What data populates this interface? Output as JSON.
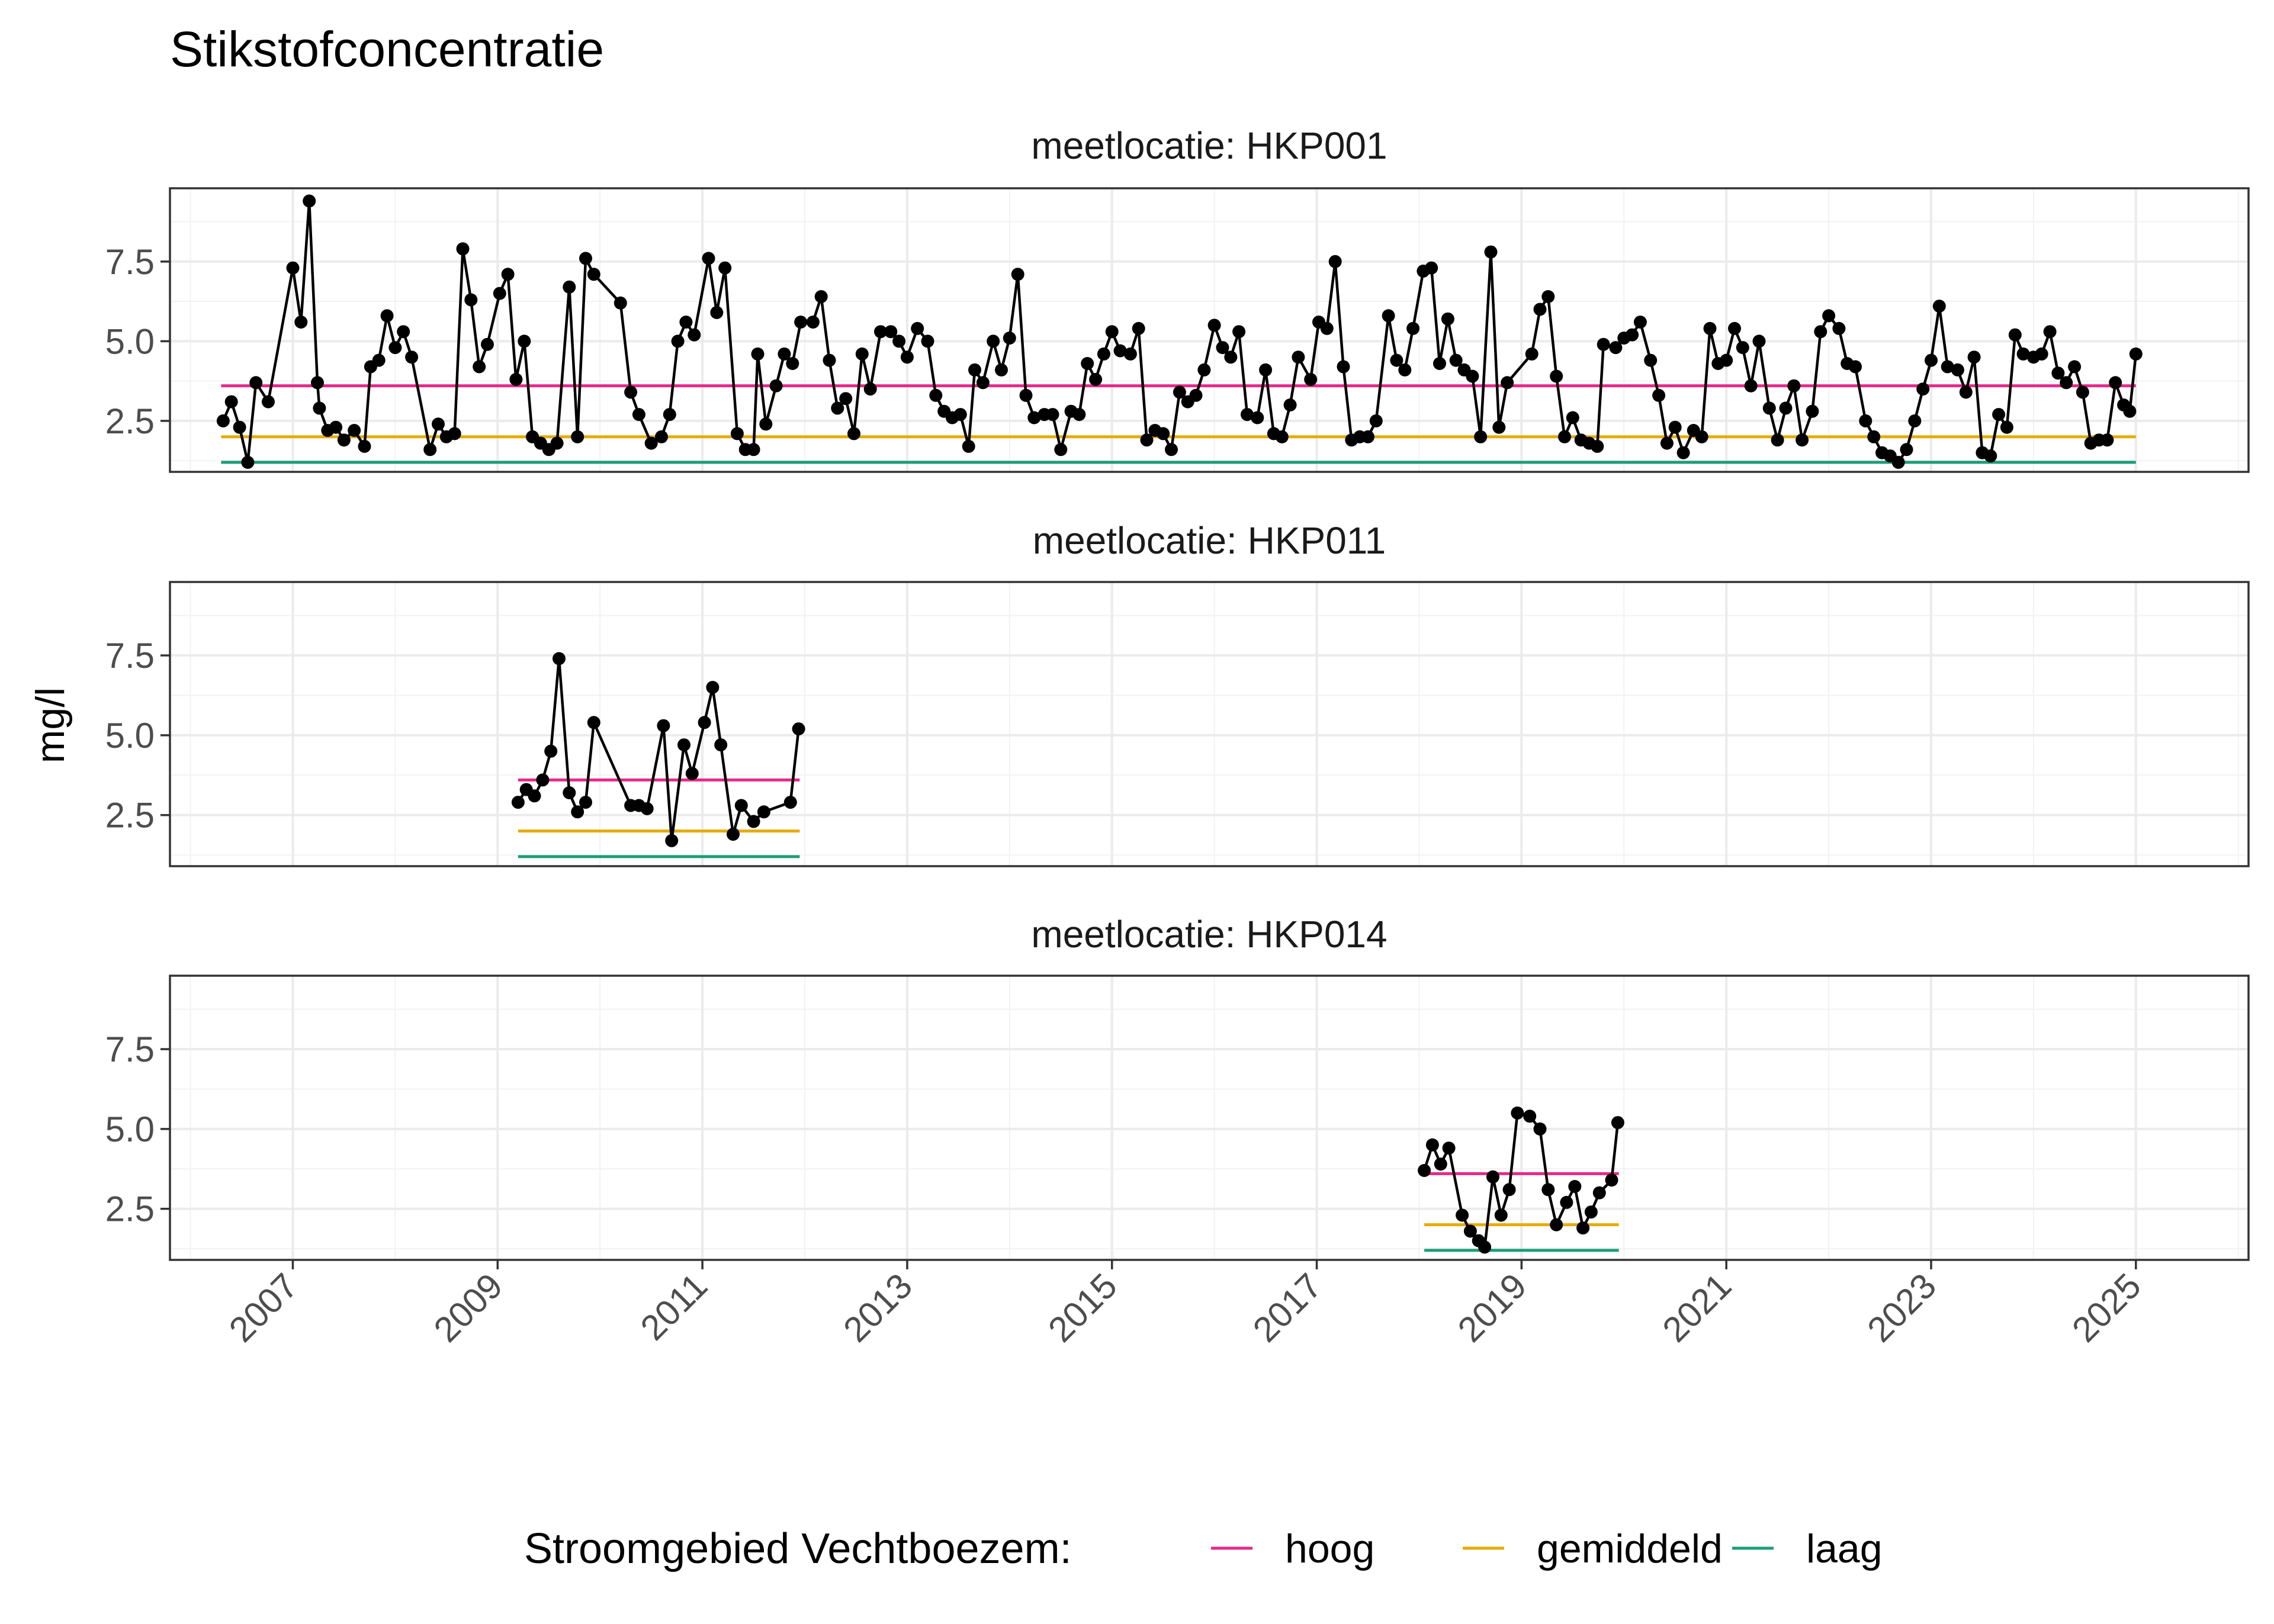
{
  "chart_data": {
    "type": "line",
    "title": "Stikstofconcentratie",
    "ylabel": "mg/l",
    "xlabel": "",
    "ylim": [
      0.9,
      9.8
    ],
    "xlim": [
      2005.8,
      2026.1
    ],
    "y_ticks": [
      2.5,
      5.0,
      7.5
    ],
    "y_tick_labels": [
      "2.5",
      "5.0",
      "7.5"
    ],
    "x_ticks": [
      2007,
      2009,
      2011,
      2013,
      2015,
      2017,
      2019,
      2021,
      2023,
      2025
    ],
    "x_tick_labels": [
      "2007",
      "2009",
      "2011",
      "2013",
      "2015",
      "2017",
      "2019",
      "2021",
      "2023",
      "2025"
    ],
    "grid": true,
    "facet_prefix": "meetlocatie: ",
    "legend": {
      "title": "Stroomgebied Vechtboezem:",
      "position": "bottom",
      "items": [
        {
          "label": "hoog",
          "color": "#e7298a"
        },
        {
          "label": "gemiddeld",
          "color": "#e6ab02"
        },
        {
          "label": "laag",
          "color": "#1b9e77"
        }
      ]
    },
    "reference_levels": {
      "hoog": 3.6,
      "gemiddeld": 2.0,
      "laag": 1.2
    },
    "series_color": "#000000",
    "panels": [
      {
        "name": "HKP001",
        "x_range": [
          2006.3,
          2025.0
        ],
        "points": [
          [
            2006.32,
            2.5
          ],
          [
            2006.4,
            3.1
          ],
          [
            2006.48,
            2.3
          ],
          [
            2006.56,
            1.2
          ],
          [
            2006.64,
            3.7
          ],
          [
            2006.76,
            3.1
          ],
          [
            2007.0,
            7.3
          ],
          [
            2007.08,
            5.6
          ],
          [
            2007.16,
            9.4
          ],
          [
            2007.24,
            3.7
          ],
          [
            2007.26,
            2.9
          ],
          [
            2007.34,
            2.2
          ],
          [
            2007.42,
            2.3
          ],
          [
            2007.5,
            1.9
          ],
          [
            2007.6,
            2.2
          ],
          [
            2007.7,
            1.7
          ],
          [
            2007.76,
            4.2
          ],
          [
            2007.84,
            4.4
          ],
          [
            2007.92,
            5.8
          ],
          [
            2008.0,
            4.8
          ],
          [
            2008.08,
            5.3
          ],
          [
            2008.16,
            4.5
          ],
          [
            2008.34,
            1.6
          ],
          [
            2008.42,
            2.4
          ],
          [
            2008.5,
            2.0
          ],
          [
            2008.58,
            2.1
          ],
          [
            2008.66,
            7.9
          ],
          [
            2008.74,
            6.3
          ],
          [
            2008.82,
            4.2
          ],
          [
            2008.9,
            4.9
          ],
          [
            2009.02,
            6.5
          ],
          [
            2009.1,
            7.1
          ],
          [
            2009.18,
            3.8
          ],
          [
            2009.26,
            5.0
          ],
          [
            2009.34,
            2.0
          ],
          [
            2009.42,
            1.8
          ],
          [
            2009.5,
            1.6
          ],
          [
            2009.58,
            1.8
          ],
          [
            2009.7,
            6.7
          ],
          [
            2009.78,
            2.0
          ],
          [
            2009.86,
            7.6
          ],
          [
            2009.94,
            7.1
          ],
          [
            2010.2,
            6.2
          ],
          [
            2010.3,
            3.4
          ],
          [
            2010.38,
            2.7
          ],
          [
            2010.5,
            1.8
          ],
          [
            2010.6,
            2.0
          ],
          [
            2010.68,
            2.7
          ],
          [
            2010.76,
            5.0
          ],
          [
            2010.84,
            5.6
          ],
          [
            2010.92,
            5.2
          ],
          [
            2011.06,
            7.6
          ],
          [
            2011.14,
            5.9
          ],
          [
            2011.22,
            7.3
          ],
          [
            2011.34,
            2.1
          ],
          [
            2011.42,
            1.6
          ],
          [
            2011.5,
            1.6
          ],
          [
            2011.54,
            4.6
          ],
          [
            2011.62,
            2.4
          ],
          [
            2011.72,
            3.6
          ],
          [
            2011.8,
            4.6
          ],
          [
            2011.88,
            4.3
          ],
          [
            2011.96,
            5.6
          ],
          [
            2012.08,
            5.6
          ],
          [
            2012.16,
            6.4
          ],
          [
            2012.24,
            4.4
          ],
          [
            2012.32,
            2.9
          ],
          [
            2012.4,
            3.2
          ],
          [
            2012.48,
            2.1
          ],
          [
            2012.56,
            4.6
          ],
          [
            2012.64,
            3.5
          ],
          [
            2012.74,
            5.3
          ],
          [
            2012.84,
            5.3
          ],
          [
            2012.92,
            5.0
          ],
          [
            2013.0,
            4.5
          ],
          [
            2013.1,
            5.4
          ],
          [
            2013.2,
            5.0
          ],
          [
            2013.28,
            3.3
          ],
          [
            2013.36,
            2.8
          ],
          [
            2013.44,
            2.6
          ],
          [
            2013.52,
            2.7
          ],
          [
            2013.6,
            1.7
          ],
          [
            2013.66,
            4.1
          ],
          [
            2013.74,
            3.7
          ],
          [
            2013.84,
            5.0
          ],
          [
            2013.92,
            4.1
          ],
          [
            2014.0,
            5.1
          ],
          [
            2014.08,
            7.1
          ],
          [
            2014.16,
            3.3
          ],
          [
            2014.24,
            2.6
          ],
          [
            2014.34,
            2.7
          ],
          [
            2014.42,
            2.7
          ],
          [
            2014.5,
            1.6
          ],
          [
            2014.6,
            2.8
          ],
          [
            2014.68,
            2.7
          ],
          [
            2014.76,
            4.3
          ],
          [
            2014.84,
            3.8
          ],
          [
            2014.92,
            4.6
          ],
          [
            2015.0,
            5.3
          ],
          [
            2015.08,
            4.7
          ],
          [
            2015.18,
            4.6
          ],
          [
            2015.26,
            5.4
          ],
          [
            2015.34,
            1.9
          ],
          [
            2015.42,
            2.2
          ],
          [
            2015.5,
            2.1
          ],
          [
            2015.58,
            1.6
          ],
          [
            2015.66,
            3.4
          ],
          [
            2015.74,
            3.1
          ],
          [
            2015.82,
            3.3
          ],
          [
            2015.9,
            4.1
          ],
          [
            2016.0,
            5.5
          ],
          [
            2016.08,
            4.8
          ],
          [
            2016.16,
            4.5
          ],
          [
            2016.24,
            5.3
          ],
          [
            2016.32,
            2.7
          ],
          [
            2016.42,
            2.6
          ],
          [
            2016.5,
            4.1
          ],
          [
            2016.58,
            2.1
          ],
          [
            2016.66,
            2.0
          ],
          [
            2016.74,
            3.0
          ],
          [
            2016.82,
            4.5
          ],
          [
            2016.94,
            3.8
          ],
          [
            2017.02,
            5.6
          ],
          [
            2017.1,
            5.4
          ],
          [
            2017.18,
            7.5
          ],
          [
            2017.26,
            4.2
          ],
          [
            2017.34,
            1.9
          ],
          [
            2017.42,
            2.0
          ],
          [
            2017.5,
            2.0
          ],
          [
            2017.58,
            2.5
          ],
          [
            2017.7,
            5.8
          ],
          [
            2017.78,
            4.4
          ],
          [
            2017.86,
            4.1
          ],
          [
            2017.94,
            5.4
          ],
          [
            2018.04,
            7.2
          ],
          [
            2018.12,
            7.3
          ],
          [
            2018.2,
            4.3
          ],
          [
            2018.28,
            5.7
          ],
          [
            2018.36,
            4.4
          ],
          [
            2018.44,
            4.1
          ],
          [
            2018.52,
            3.9
          ],
          [
            2018.6,
            2.0
          ],
          [
            2018.7,
            7.8
          ],
          [
            2018.78,
            2.3
          ],
          [
            2018.86,
            3.7
          ],
          [
            2019.1,
            4.6
          ],
          [
            2019.18,
            6.0
          ],
          [
            2019.26,
            6.4
          ],
          [
            2019.34,
            3.9
          ],
          [
            2019.42,
            2.0
          ],
          [
            2019.5,
            2.6
          ],
          [
            2019.58,
            1.9
          ],
          [
            2019.66,
            1.8
          ],
          [
            2019.74,
            1.7
          ],
          [
            2019.8,
            4.9
          ],
          [
            2019.92,
            4.8
          ],
          [
            2020.0,
            5.1
          ],
          [
            2020.08,
            5.2
          ],
          [
            2020.16,
            5.6
          ],
          [
            2020.26,
            4.4
          ],
          [
            2020.34,
            3.3
          ],
          [
            2020.42,
            1.8
          ],
          [
            2020.5,
            2.3
          ],
          [
            2020.58,
            1.5
          ],
          [
            2020.68,
            2.2
          ],
          [
            2020.76,
            2.0
          ],
          [
            2020.84,
            5.4
          ],
          [
            2020.92,
            4.3
          ],
          [
            2021.0,
            4.4
          ],
          [
            2021.08,
            5.4
          ],
          [
            2021.16,
            4.8
          ],
          [
            2021.24,
            3.6
          ],
          [
            2021.32,
            5.0
          ],
          [
            2021.42,
            2.9
          ],
          [
            2021.5,
            1.9
          ],
          [
            2021.58,
            2.9
          ],
          [
            2021.66,
            3.6
          ],
          [
            2021.74,
            1.9
          ],
          [
            2021.84,
            2.8
          ],
          [
            2021.92,
            5.3
          ],
          [
            2022.0,
            5.8
          ],
          [
            2022.1,
            5.4
          ],
          [
            2022.18,
            4.3
          ],
          [
            2022.26,
            4.2
          ],
          [
            2022.36,
            2.5
          ],
          [
            2022.44,
            2.0
          ],
          [
            2022.52,
            1.5
          ],
          [
            2022.6,
            1.4
          ],
          [
            2022.68,
            1.2
          ],
          [
            2022.76,
            1.6
          ],
          [
            2022.84,
            2.5
          ],
          [
            2022.92,
            3.5
          ],
          [
            2023.0,
            4.4
          ],
          [
            2023.08,
            6.1
          ],
          [
            2023.16,
            4.2
          ],
          [
            2023.26,
            4.1
          ],
          [
            2023.34,
            3.4
          ],
          [
            2023.42,
            4.5
          ],
          [
            2023.5,
            1.5
          ],
          [
            2023.58,
            1.4
          ],
          [
            2023.66,
            2.7
          ],
          [
            2023.74,
            2.3
          ],
          [
            2023.82,
            5.2
          ],
          [
            2023.9,
            4.6
          ],
          [
            2024.0,
            4.5
          ],
          [
            2024.08,
            4.6
          ],
          [
            2024.16,
            5.3
          ],
          [
            2024.24,
            4.0
          ],
          [
            2024.32,
            3.7
          ],
          [
            2024.4,
            4.2
          ],
          [
            2024.48,
            3.4
          ],
          [
            2024.56,
            1.8
          ],
          [
            2024.64,
            1.9
          ],
          [
            2024.72,
            1.9
          ],
          [
            2024.8,
            3.7
          ],
          [
            2024.88,
            3.0
          ],
          [
            2024.94,
            2.8
          ],
          [
            2025.0,
            4.6
          ]
        ]
      },
      {
        "name": "HKP011",
        "x_range": [
          2009.2,
          2011.95
        ],
        "points": [
          [
            2009.2,
            2.9
          ],
          [
            2009.28,
            3.3
          ],
          [
            2009.36,
            3.1
          ],
          [
            2009.44,
            3.6
          ],
          [
            2009.52,
            4.5
          ],
          [
            2009.6,
            7.4
          ],
          [
            2009.7,
            3.2
          ],
          [
            2009.78,
            2.6
          ],
          [
            2009.86,
            2.9
          ],
          [
            2009.94,
            5.4
          ],
          [
            2010.3,
            2.8
          ],
          [
            2010.38,
            2.8
          ],
          [
            2010.46,
            2.7
          ],
          [
            2010.62,
            5.3
          ],
          [
            2010.7,
            1.7
          ],
          [
            2010.82,
            4.7
          ],
          [
            2010.9,
            3.8
          ],
          [
            2011.02,
            5.4
          ],
          [
            2011.1,
            6.5
          ],
          [
            2011.18,
            4.7
          ],
          [
            2011.3,
            1.9
          ],
          [
            2011.38,
            2.8
          ],
          [
            2011.5,
            2.3
          ],
          [
            2011.6,
            2.6
          ],
          [
            2011.86,
            2.9
          ],
          [
            2011.94,
            5.2
          ]
        ]
      },
      {
        "name": "HKP014",
        "x_range": [
          2018.05,
          2019.95
        ],
        "points": [
          [
            2018.05,
            3.7
          ],
          [
            2018.13,
            4.5
          ],
          [
            2018.21,
            3.9
          ],
          [
            2018.29,
            4.4
          ],
          [
            2018.42,
            2.3
          ],
          [
            2018.5,
            1.8
          ],
          [
            2018.58,
            1.5
          ],
          [
            2018.64,
            1.3
          ],
          [
            2018.72,
            3.5
          ],
          [
            2018.8,
            2.3
          ],
          [
            2018.88,
            3.1
          ],
          [
            2018.96,
            5.5
          ],
          [
            2019.08,
            5.4
          ],
          [
            2019.18,
            5.0
          ],
          [
            2019.26,
            3.1
          ],
          [
            2019.34,
            2.0
          ],
          [
            2019.44,
            2.7
          ],
          [
            2019.52,
            3.2
          ],
          [
            2019.6,
            1.9
          ],
          [
            2019.68,
            2.4
          ],
          [
            2019.76,
            3.0
          ],
          [
            2019.88,
            3.4
          ],
          [
            2019.94,
            5.2
          ]
        ]
      }
    ]
  }
}
